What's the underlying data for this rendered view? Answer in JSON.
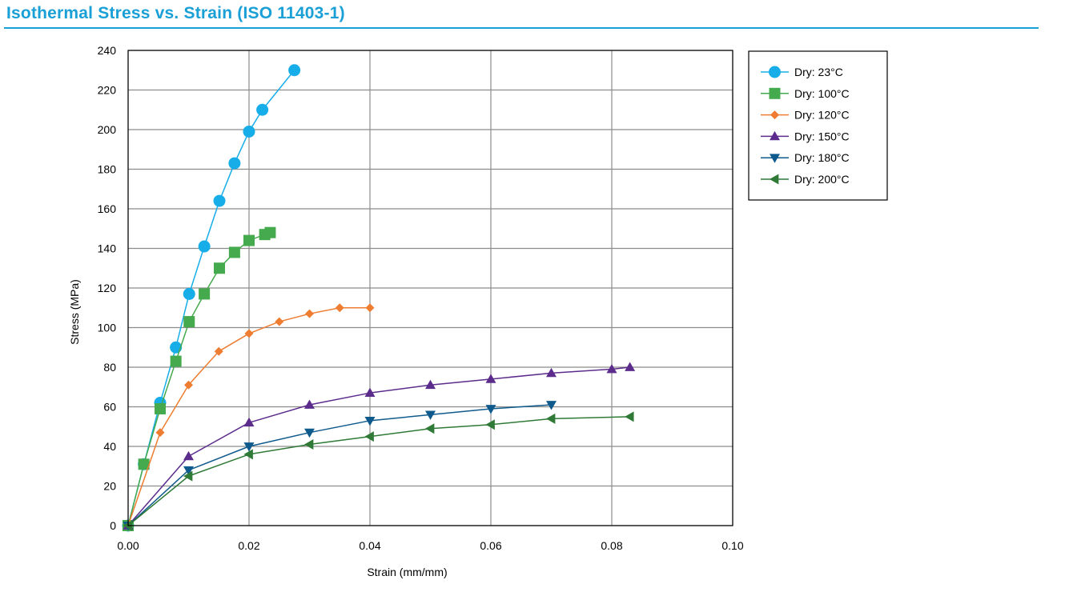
{
  "chart_data": {
    "type": "line",
    "title": "Isothermal Stress vs. Strain (ISO 11403-1)",
    "xlabel": "Strain (mm/mm)",
    "ylabel": "Stress (MPa)",
    "xlim": [
      0,
      0.1
    ],
    "ylim": [
      0,
      240
    ],
    "x_ticks": [
      "0.00",
      "0.02",
      "0.04",
      "0.06",
      "0.08",
      "0.10"
    ],
    "y_ticks": [
      "0",
      "20",
      "40",
      "60",
      "80",
      "100",
      "120",
      "140",
      "160",
      "180",
      "200",
      "220",
      "240"
    ],
    "grid": true,
    "legend_position": "right",
    "series": [
      {
        "name": "Dry: 23°C",
        "color": "#16ade8",
        "marker": "circle",
        "points": [
          [
            0,
            0
          ],
          [
            0.0026,
            31
          ],
          [
            0.0053,
            62
          ],
          [
            0.0079,
            90
          ],
          [
            0.0101,
            117
          ],
          [
            0.0126,
            141
          ],
          [
            0.0151,
            164
          ],
          [
            0.0176,
            183
          ],
          [
            0.02,
            199
          ],
          [
            0.0222,
            210
          ],
          [
            0.0275,
            230
          ]
        ]
      },
      {
        "name": "Dry: 100°C",
        "color": "#45a94d",
        "marker": "square",
        "points": [
          [
            0,
            0
          ],
          [
            0.0026,
            31
          ],
          [
            0.0053,
            59
          ],
          [
            0.0079,
            83
          ],
          [
            0.0101,
            103
          ],
          [
            0.0126,
            117
          ],
          [
            0.0151,
            130
          ],
          [
            0.0176,
            138
          ],
          [
            0.02,
            144
          ],
          [
            0.0226,
            147
          ],
          [
            0.0235,
            148
          ]
        ]
      },
      {
        "name": "Dry: 120°C",
        "color": "#ee7d31",
        "marker": "diamond",
        "points": [
          [
            0,
            0
          ],
          [
            0.0053,
            47
          ],
          [
            0.01,
            71
          ],
          [
            0.015,
            88
          ],
          [
            0.02,
            97
          ],
          [
            0.025,
            103
          ],
          [
            0.03,
            107
          ],
          [
            0.035,
            110
          ],
          [
            0.04,
            110
          ]
        ]
      },
      {
        "name": "Dry: 150°C",
        "color": "#5c2c8c",
        "marker": "triangle-up",
        "points": [
          [
            0,
            0
          ],
          [
            0.01,
            35
          ],
          [
            0.02,
            52
          ],
          [
            0.03,
            61
          ],
          [
            0.04,
            67
          ],
          [
            0.05,
            71
          ],
          [
            0.06,
            74
          ],
          [
            0.07,
            77
          ],
          [
            0.08,
            79
          ],
          [
            0.083,
            80
          ]
        ]
      },
      {
        "name": "Dry: 180°C",
        "color": "#0f5a8c",
        "marker": "triangle-down",
        "points": [
          [
            0,
            0
          ],
          [
            0.01,
            28
          ],
          [
            0.02,
            40
          ],
          [
            0.03,
            47
          ],
          [
            0.04,
            53
          ],
          [
            0.05,
            56
          ],
          [
            0.06,
            59
          ],
          [
            0.07,
            61
          ]
        ]
      },
      {
        "name": "Dry: 200°C",
        "color": "#2f7a36",
        "marker": "triangle-left",
        "points": [
          [
            0,
            0
          ],
          [
            0.01,
            25
          ],
          [
            0.02,
            36
          ],
          [
            0.03,
            41
          ],
          [
            0.04,
            45
          ],
          [
            0.05,
            49
          ],
          [
            0.06,
            51
          ],
          [
            0.07,
            54
          ],
          [
            0.083,
            55
          ]
        ]
      }
    ]
  }
}
